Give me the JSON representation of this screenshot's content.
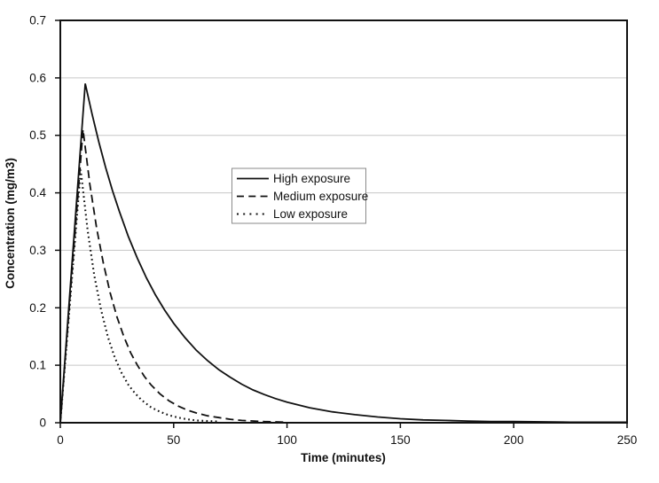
{
  "figure": {
    "background": "#ffffff",
    "line_color": "#111111",
    "grid_color": "#c6c6c6",
    "legend_border_color": "#8a8a8a"
  },
  "chart_data": {
    "type": "line",
    "title": "",
    "xlabel": "Time (minutes)",
    "ylabel": "Concentration (mg/m3)",
    "xlim": [
      0,
      250
    ],
    "ylim": [
      0,
      0.7
    ],
    "x_ticks": [
      0,
      50,
      100,
      150,
      200,
      250
    ],
    "y_ticks": [
      0,
      0.1,
      0.2,
      0.3,
      0.4,
      0.5,
      0.6,
      0.7
    ],
    "x_tick_labels": [
      "0",
      "50",
      "100",
      "150",
      "200",
      "250"
    ],
    "y_tick_labels_top_down": [
      "0.7",
      "0.6",
      "0.5",
      "0.4",
      "0.3",
      "0.2",
      "0.1",
      "0"
    ],
    "grid": "horizontal-only",
    "legend_position": "inside-upper-center-left",
    "series": [
      {
        "name": "High exposure",
        "style": "solid",
        "color": "#111111",
        "peak": {
          "t": 11,
          "c": 0.59
        },
        "points": [
          [
            0,
            0
          ],
          [
            11,
            0.59
          ],
          [
            14,
            0.537
          ],
          [
            17,
            0.488
          ],
          [
            20,
            0.444
          ],
          [
            23,
            0.404
          ],
          [
            26,
            0.368
          ],
          [
            30,
            0.324
          ],
          [
            34,
            0.286
          ],
          [
            38,
            0.252
          ],
          [
            42,
            0.222
          ],
          [
            46,
            0.196
          ],
          [
            50,
            0.173
          ],
          [
            55,
            0.148
          ],
          [
            60,
            0.126
          ],
          [
            65,
            0.108
          ],
          [
            70,
            0.092
          ],
          [
            75,
            0.079
          ],
          [
            80,
            0.067
          ],
          [
            85,
            0.057
          ],
          [
            90,
            0.049
          ],
          [
            95,
            0.042
          ],
          [
            100,
            0.036
          ],
          [
            110,
            0.026
          ],
          [
            120,
            0.019
          ],
          [
            130,
            0.014
          ],
          [
            140,
            0.01
          ],
          [
            150,
            0.007
          ],
          [
            160,
            0.005
          ],
          [
            170,
            0.004
          ],
          [
            180,
            0.003
          ],
          [
            190,
            0.002
          ],
          [
            200,
            0.002
          ],
          [
            225,
            0.001
          ],
          [
            250,
            0.001
          ]
        ]
      },
      {
        "name": "Medium exposure",
        "style": "dashed",
        "color": "#111111",
        "peak": {
          "t": 10,
          "c": 0.51
        },
        "points": [
          [
            0,
            0
          ],
          [
            10,
            0.51
          ],
          [
            13,
            0.416
          ],
          [
            16,
            0.339
          ],
          [
            19,
            0.277
          ],
          [
            22,
            0.226
          ],
          [
            25,
            0.184
          ],
          [
            28,
            0.15
          ],
          [
            31,
            0.122
          ],
          [
            34,
            0.1
          ],
          [
            37,
            0.081
          ],
          [
            40,
            0.066
          ],
          [
            44,
            0.05
          ],
          [
            48,
            0.038
          ],
          [
            52,
            0.029
          ],
          [
            56,
            0.022
          ],
          [
            60,
            0.017
          ],
          [
            65,
            0.012
          ],
          [
            70,
            0.009
          ],
          [
            75,
            0.006
          ],
          [
            80,
            0.004
          ],
          [
            90,
            0.002
          ],
          [
            100,
            0.001
          ]
        ]
      },
      {
        "name": "Low exposure",
        "style": "dotted",
        "color": "#111111",
        "peak": {
          "t": 9,
          "c": 0.44
        },
        "points": [
          [
            0,
            0
          ],
          [
            9,
            0.44
          ],
          [
            12,
            0.336
          ],
          [
            15,
            0.256
          ],
          [
            18,
            0.196
          ],
          [
            21,
            0.149
          ],
          [
            24,
            0.114
          ],
          [
            27,
            0.087
          ],
          [
            30,
            0.066
          ],
          [
            33,
            0.051
          ],
          [
            36,
            0.039
          ],
          [
            40,
            0.027
          ],
          [
            44,
            0.019
          ],
          [
            48,
            0.013
          ],
          [
            52,
            0.009
          ],
          [
            56,
            0.006
          ],
          [
            60,
            0.004
          ],
          [
            70,
            0.002
          ]
        ]
      }
    ]
  }
}
